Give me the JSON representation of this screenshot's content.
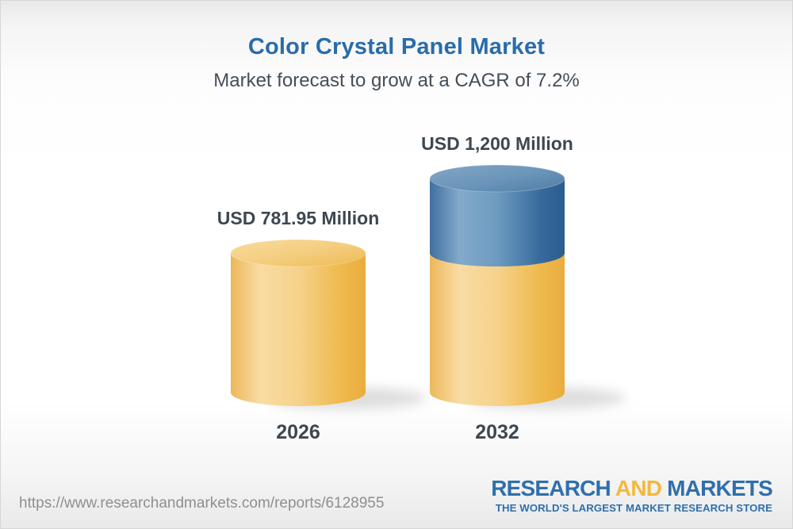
{
  "header": {
    "title": "Color Crystal Panel Market",
    "subtitle": "Market forecast to grow at a CAGR of 7.2%"
  },
  "chart_data": {
    "type": "bar",
    "subtype": "3d-stacked-cylinder",
    "title": "Color Crystal Panel Market",
    "subtitle": "Market forecast to grow at a CAGR of 7.2%",
    "cagr_percent": 7.2,
    "categories": [
      "2026",
      "2032"
    ],
    "values": [
      781.95,
      1200
    ],
    "value_labels": [
      "USD 781.95 Million",
      "USD 1,200 Million"
    ],
    "unit": "USD Million",
    "base_value": 781.95,
    "growth_value": 418.05,
    "legend": "none",
    "axes": "none",
    "colors": {
      "base_segment": "#F3C666",
      "growth_segment": "#5684AE",
      "label_text": "#3D4750",
      "title_text": "#2A6CA9"
    }
  },
  "footer": {
    "source_url": "https://www.researchandmarkets.com/reports/6128955",
    "logo": {
      "text_primary": "RESEARCH",
      "text_accent": "AND",
      "text_secondary": "MARKETS",
      "tagline": "THE WORLD'S LARGEST MARKET RESEARCH STORE",
      "color_primary": "#2F6FAC",
      "color_accent": "#F2B93D"
    }
  }
}
